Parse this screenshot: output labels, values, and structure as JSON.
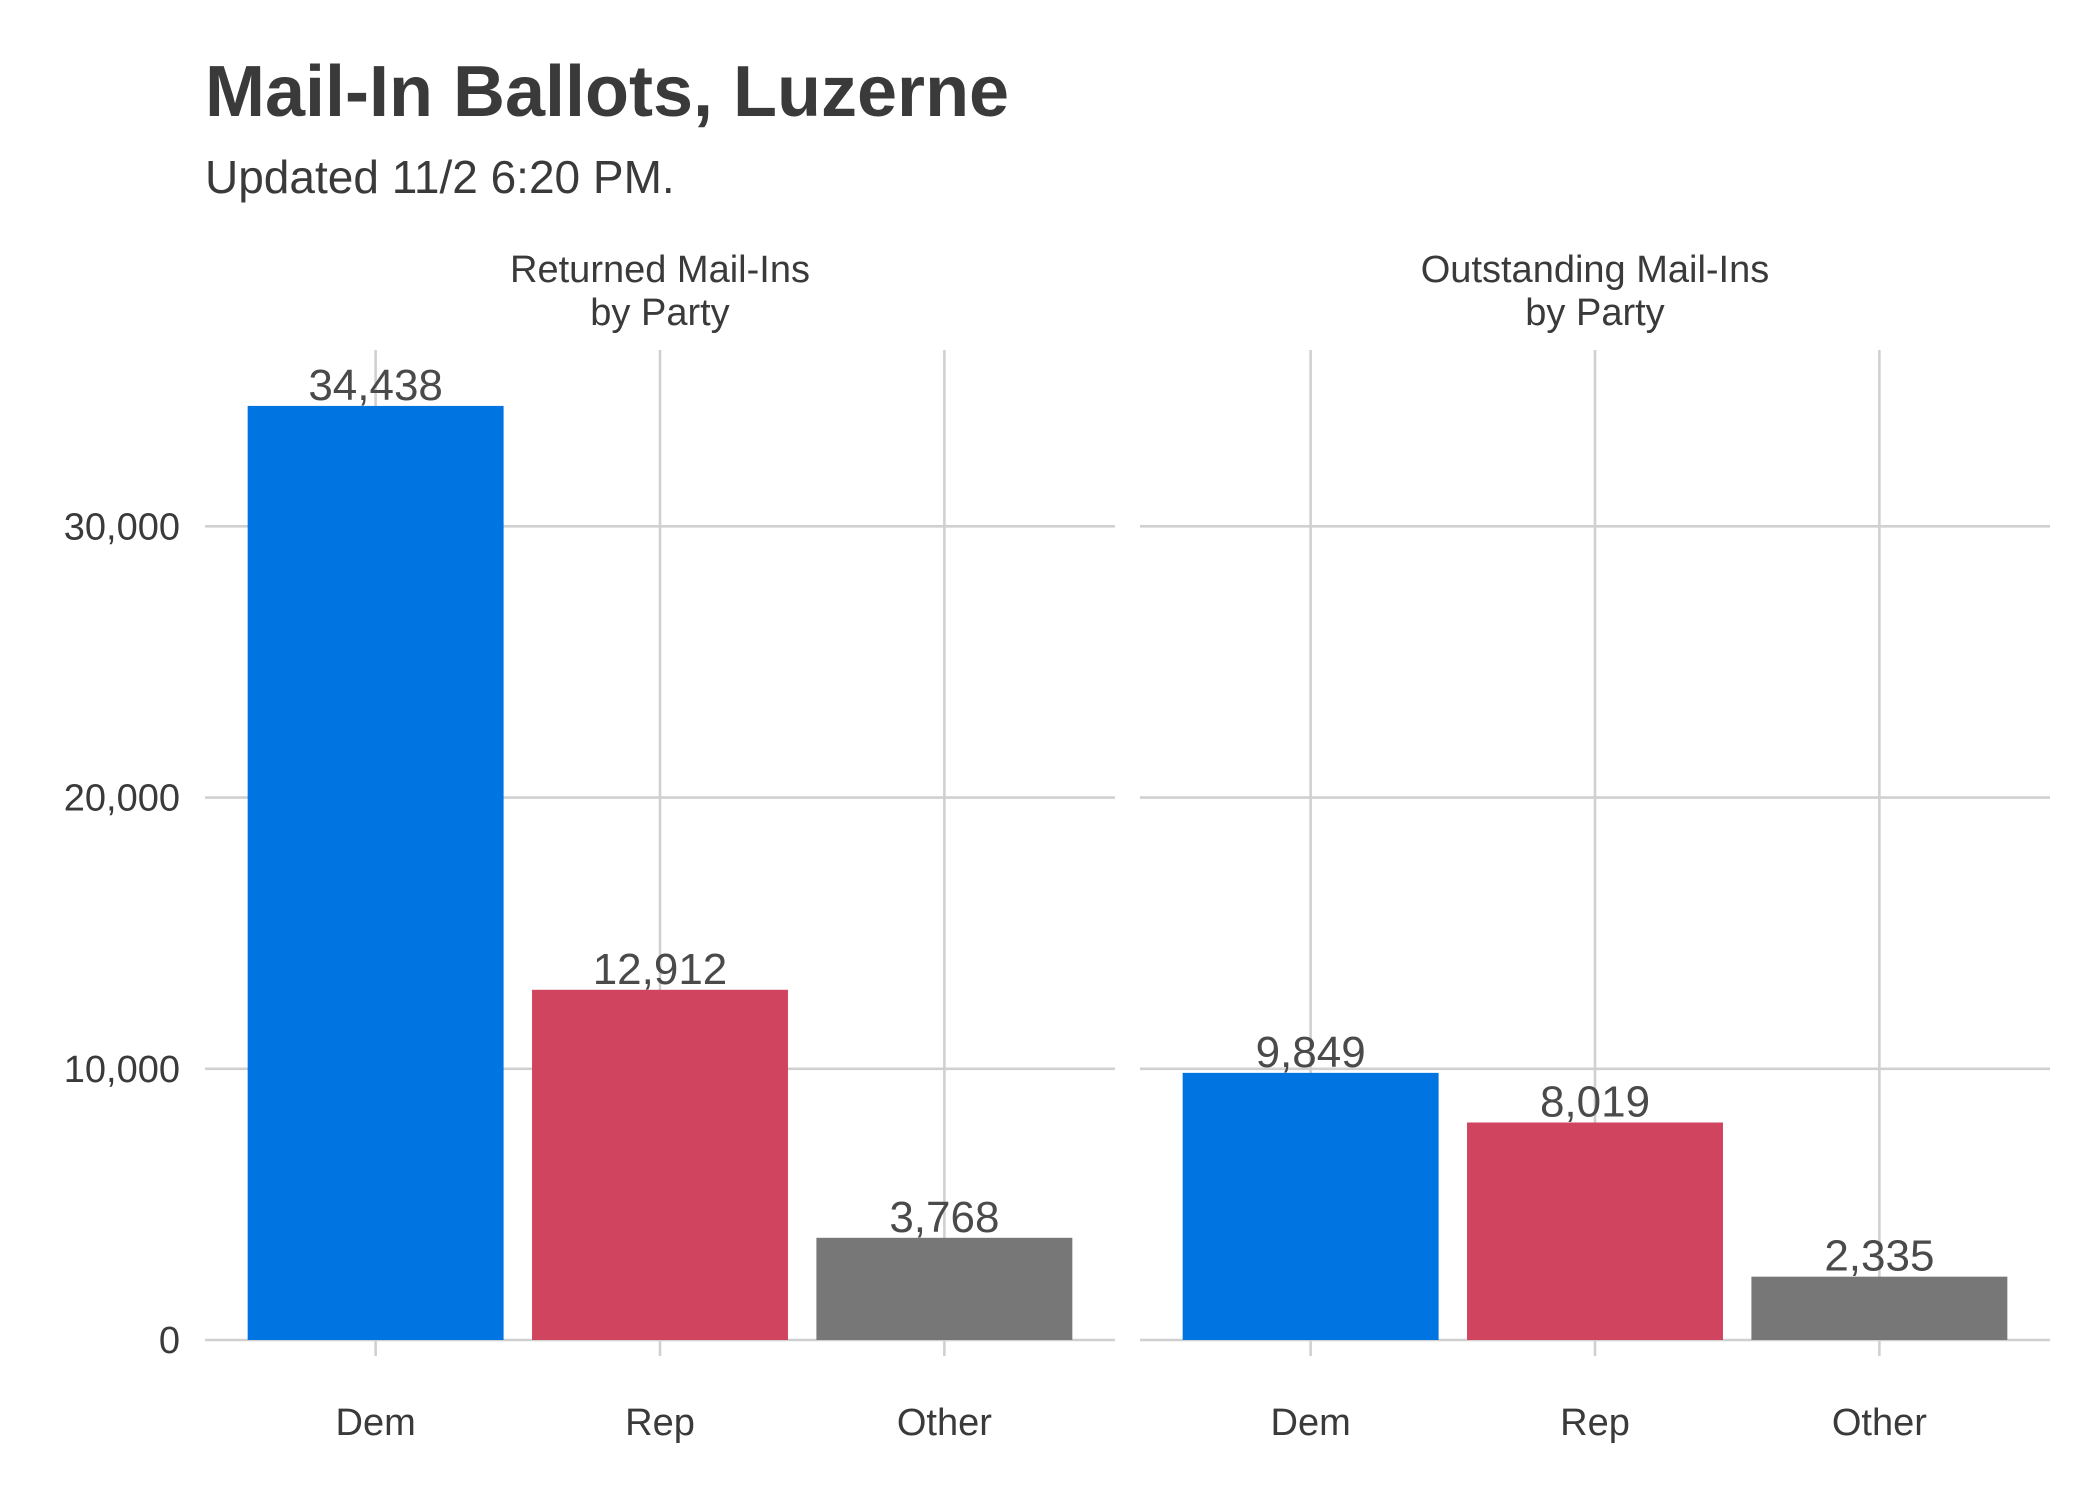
{
  "chart_data": {
    "type": "bar",
    "title": "Mail-In Ballots, Luzerne",
    "subtitle": "Updated 11/2 6:20 PM.",
    "xlabel": "",
    "ylabel": "",
    "categories": [
      "Dem",
      "Rep",
      "Other"
    ],
    "ylim": [
      0,
      36500
    ],
    "yticks": [
      0,
      10000,
      20000,
      30000
    ],
    "ytick_labels": [
      "0",
      "10,000",
      "20,000",
      "30,000"
    ],
    "grid": true,
    "legend": "none",
    "colors": {
      "Dem": "#0074e0",
      "Rep": "#d0445f",
      "Other": "#777777"
    },
    "facets": [
      {
        "label": [
          "Returned Mail-Ins",
          "by Party"
        ],
        "values": [
          34438,
          12912,
          3768
        ],
        "value_labels": [
          "34,438",
          "12,912",
          "3,768"
        ]
      },
      {
        "label": [
          "Outstanding Mail-Ins",
          "by Party"
        ],
        "values": [
          9849,
          8019,
          2335
        ],
        "value_labels": [
          "9,849",
          "8,019",
          "2,335"
        ]
      }
    ]
  }
}
